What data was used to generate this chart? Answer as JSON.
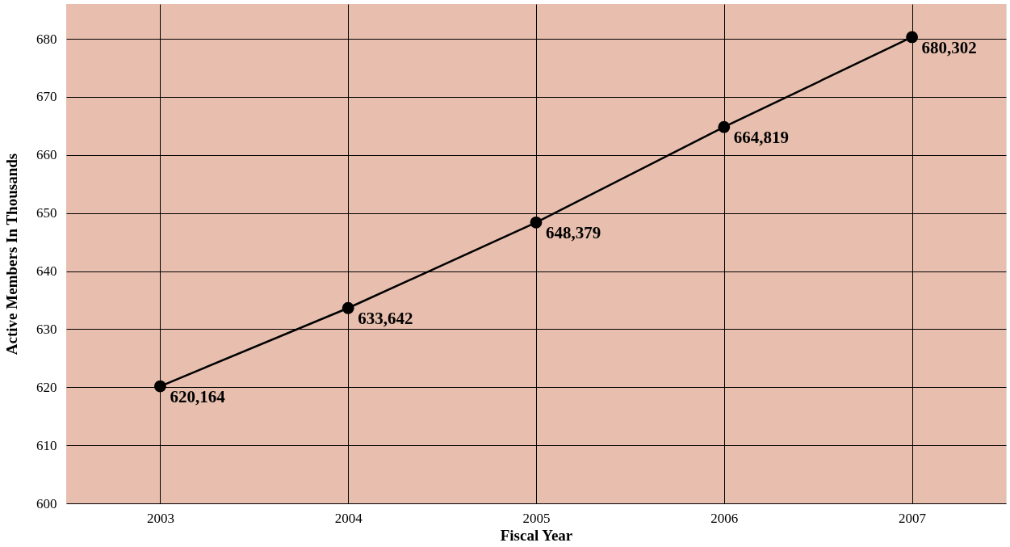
{
  "chart_data": {
    "type": "line",
    "xlabel": "Fiscal Year",
    "ylabel": "Active Members In Thousands",
    "categories": [
      "2003",
      "2004",
      "2005",
      "2006",
      "2007"
    ],
    "series": [
      {
        "color": "#000000",
        "values": [
          620.164,
          633.642,
          648.379,
          664.819,
          680.302
        ]
      }
    ],
    "annotations": [
      {
        "text": "620,164",
        "x": "2003",
        "y": 620.164
      },
      {
        "text": "633,642",
        "x": "2004",
        "y": 633.642
      },
      {
        "text": "648,379",
        "x": "2005",
        "y": 648.379
      },
      {
        "text": "664,819",
        "x": "2006",
        "y": 664.819
      },
      {
        "text": "680,302",
        "x": "2007",
        "y": 680.302
      }
    ],
    "ylim": [
      600,
      686
    ],
    "yticks": [
      600,
      610,
      620,
      630,
      640,
      650,
      660,
      670,
      680
    ],
    "grid": true,
    "marker": "circle",
    "line_style": "solid",
    "legend": false
  }
}
